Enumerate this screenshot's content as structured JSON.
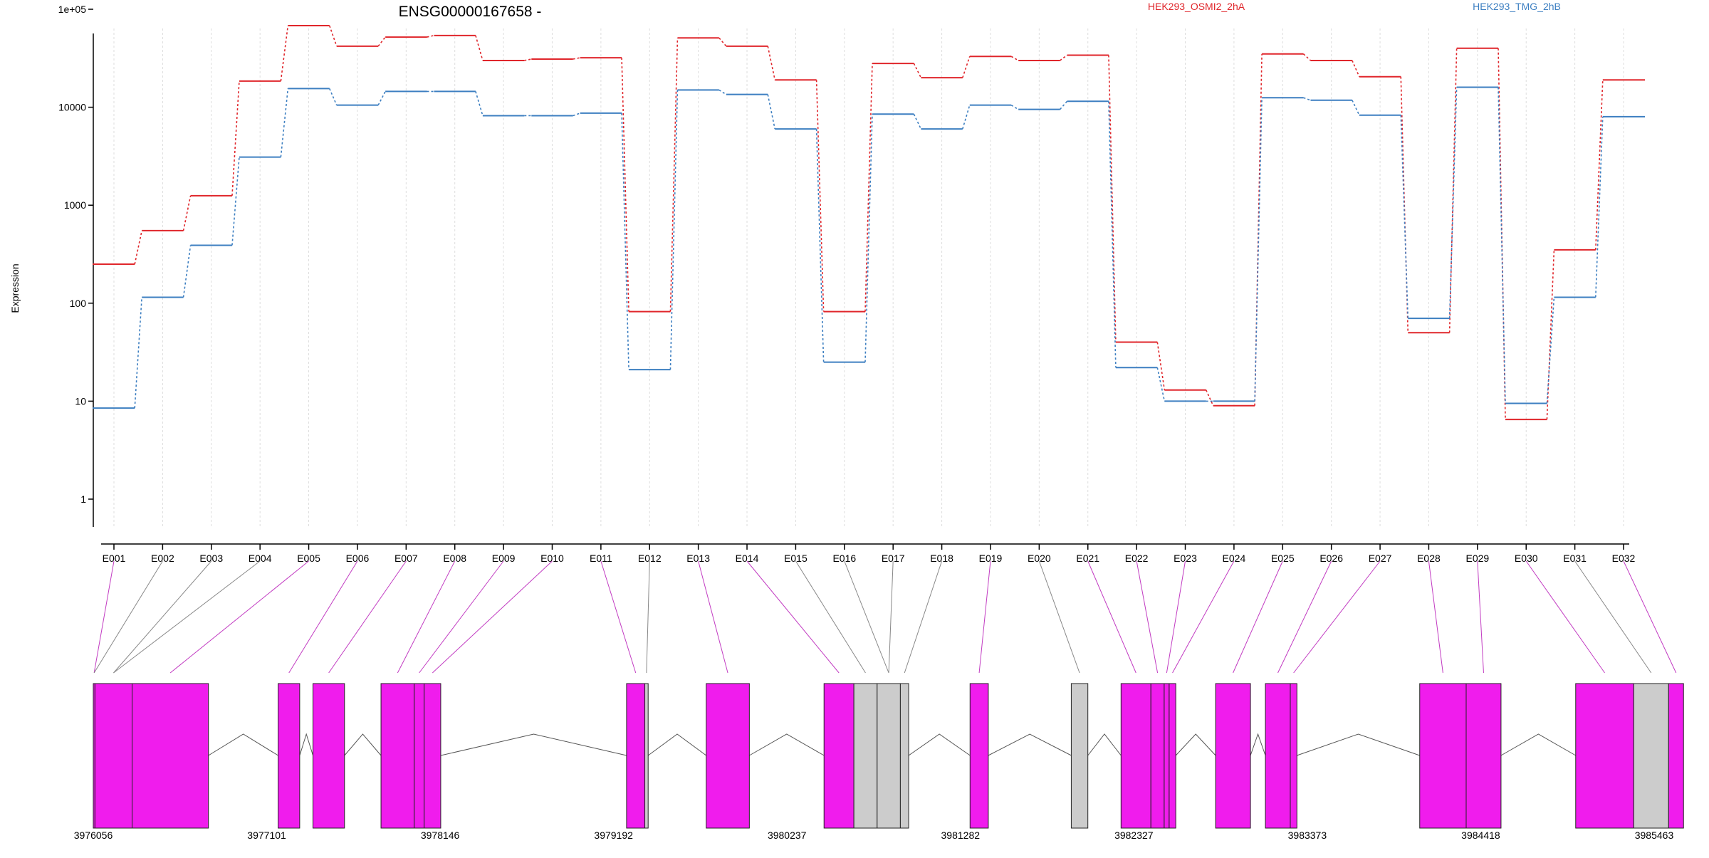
{
  "chart_data": {
    "type": "line",
    "title": "ENSG00000167658 -",
    "ylabel": "Expression",
    "xlabel": "",
    "y_scale": "log",
    "y_ticks": [
      {
        "value": 1,
        "label": "1"
      },
      {
        "value": 10,
        "label": "10"
      },
      {
        "value": 100,
        "label": "100"
      },
      {
        "value": 1000,
        "label": "1000"
      },
      {
        "value": 10000,
        "label": "10000"
      },
      {
        "value": 100000,
        "label": "1e+05"
      }
    ],
    "grid": "vertical dotted lines at exon boundaries",
    "legend_placement": "top",
    "categories": [
      "E001",
      "E002",
      "E003",
      "E004",
      "E005",
      "E006",
      "E007",
      "E008",
      "E009",
      "E010",
      "E011",
      "E012",
      "E013",
      "E014",
      "E015",
      "E016",
      "E017",
      "E018",
      "E019",
      "E020",
      "E021",
      "E022",
      "E023",
      "E024",
      "E025",
      "E026",
      "E027",
      "E028",
      "E029",
      "E030",
      "E031",
      "E032"
    ],
    "series": [
      {
        "name": "HEK293_OSMI2_2hA",
        "color": "#e0262b",
        "values": [
          250,
          550,
          1250,
          18500,
          68000,
          42000,
          52000,
          54000,
          30000,
          31000,
          32000,
          82,
          51000,
          42000,
          19000,
          82,
          28000,
          20000,
          33000,
          30000,
          34000,
          40,
          13,
          9,
          35000,
          30000,
          20500,
          50,
          40000,
          6.5,
          350,
          19000
        ]
      },
      {
        "name": "HEK293_TMG_2hB",
        "color": "#3d7fc1",
        "values": [
          8.5,
          115,
          390,
          3100,
          15500,
          10500,
          14500,
          14500,
          8200,
          8200,
          8700,
          21,
          15000,
          13500,
          6000,
          25,
          8500,
          6000,
          10500,
          9500,
          11500,
          22,
          10,
          10,
          12500,
          11800,
          8300,
          70,
          16000,
          9.5,
          115,
          8000
        ]
      }
    ],
    "gene_model": {
      "coordinate_ticks": [
        "3976056",
        "3977101",
        "3978146",
        "3979192",
        "3980237",
        "3981282",
        "3982327",
        "3983373",
        "3984418",
        "3985463"
      ],
      "start": 3976056,
      "end": 3985463,
      "exon_color": "#f01ced",
      "other_color": "#cccccc",
      "bins": [
        {
          "start": 3976056,
          "end": 3976066,
          "color": "#f01ced"
        },
        {
          "start": 3976066,
          "end": 3976290,
          "color": "#f01ced"
        },
        {
          "start": 3976290,
          "end": 3976750,
          "color": "#f01ced"
        },
        {
          "start": 3977170,
          "end": 3977300,
          "color": "#f01ced"
        },
        {
          "start": 3977380,
          "end": 3977570,
          "color": "#f01ced"
        },
        {
          "start": 3977790,
          "end": 3977990,
          "color": "#f01ced"
        },
        {
          "start": 3977990,
          "end": 3978050,
          "color": "#f01ced"
        },
        {
          "start": 3978050,
          "end": 3978150,
          "color": "#f01ced"
        },
        {
          "start": 3979270,
          "end": 3979380,
          "color": "#f01ced"
        },
        {
          "start": 3979380,
          "end": 3979400,
          "color": "#cccccc"
        },
        {
          "start": 3979750,
          "end": 3980010,
          "color": "#f01ced"
        },
        {
          "start": 3980460,
          "end": 3980640,
          "color": "#f01ced"
        },
        {
          "start": 3980640,
          "end": 3980780,
          "color": "#cccccc"
        },
        {
          "start": 3980780,
          "end": 3980920,
          "color": "#cccccc"
        },
        {
          "start": 3980920,
          "end": 3980970,
          "color": "#cccccc"
        },
        {
          "start": 3981340,
          "end": 3981450,
          "color": "#f01ced"
        },
        {
          "start": 3981950,
          "end": 3982050,
          "color": "#cccccc"
        },
        {
          "start": 3982250,
          "end": 3982430,
          "color": "#f01ced"
        },
        {
          "start": 3982430,
          "end": 3982510,
          "color": "#f01ced"
        },
        {
          "start": 3982510,
          "end": 3982540,
          "color": "#f01ced"
        },
        {
          "start": 3982540,
          "end": 3982580,
          "color": "#f01ced"
        },
        {
          "start": 3982820,
          "end": 3983030,
          "color": "#f01ced"
        },
        {
          "start": 3983120,
          "end": 3983270,
          "color": "#f01ced"
        },
        {
          "start": 3983270,
          "end": 3983310,
          "color": "#f01ced"
        },
        {
          "start": 3984050,
          "end": 3984330,
          "color": "#f01ced"
        },
        {
          "start": 3984330,
          "end": 3984540,
          "color": "#f01ced"
        },
        {
          "start": 3984990,
          "end": 3985340,
          "color": "#f01ced"
        },
        {
          "start": 3985340,
          "end": 3985550,
          "color": "#cccccc"
        },
        {
          "start": 3985550,
          "end": 3985640,
          "color": "#f01ced"
        }
      ],
      "connectors": [
        {
          "exon": 0,
          "bin": 0,
          "color": "#c23cc2"
        },
        {
          "exon": 1,
          "bin": 0,
          "color": "#888888"
        },
        {
          "exon": 2,
          "bin": 1,
          "color": "#888888"
        },
        {
          "exon": 3,
          "bin": 1,
          "color": "#888888"
        },
        {
          "exon": 4,
          "bin": 2,
          "color": "#c23cc2"
        },
        {
          "exon": 5,
          "bin": 3,
          "color": "#c23cc2"
        },
        {
          "exon": 6,
          "bin": 4,
          "color": "#c23cc2"
        },
        {
          "exon": 7,
          "bin": 5,
          "color": "#c23cc2"
        },
        {
          "exon": 8,
          "bin": 6,
          "color": "#c23cc2"
        },
        {
          "exon": 9,
          "bin": 7,
          "color": "#c23cc2"
        },
        {
          "exon": 10,
          "bin": 8,
          "color": "#c23cc2"
        },
        {
          "exon": 11,
          "bin": 9,
          "color": "#888888"
        },
        {
          "exon": 12,
          "bin": 10,
          "color": "#c23cc2"
        },
        {
          "exon": 13,
          "bin": 11,
          "color": "#c23cc2"
        },
        {
          "exon": 14,
          "bin": 12,
          "color": "#888888"
        },
        {
          "exon": 15,
          "bin": 13,
          "color": "#888888"
        },
        {
          "exon": 16,
          "bin": 13,
          "color": "#888888"
        },
        {
          "exon": 17,
          "bin": 14,
          "color": "#888888"
        },
        {
          "exon": 18,
          "bin": 15,
          "color": "#c23cc2"
        },
        {
          "exon": 19,
          "bin": 16,
          "color": "#888888"
        },
        {
          "exon": 20,
          "bin": 17,
          "color": "#c23cc2"
        },
        {
          "exon": 21,
          "bin": 18,
          "color": "#c23cc2"
        },
        {
          "exon": 22,
          "bin": 19,
          "color": "#c23cc2"
        },
        {
          "exon": 23,
          "bin": 20,
          "color": "#c23cc2"
        },
        {
          "exon": 24,
          "bin": 21,
          "color": "#c23cc2"
        },
        {
          "exon": 25,
          "bin": 22,
          "color": "#c23cc2"
        },
        {
          "exon": 26,
          "bin": 23,
          "color": "#c23cc2"
        },
        {
          "exon": 27,
          "bin": 24,
          "color": "#c23cc2"
        },
        {
          "exon": 28,
          "bin": 25,
          "color": "#c23cc2"
        },
        {
          "exon": 29,
          "bin": 26,
          "color": "#c23cc2"
        },
        {
          "exon": 30,
          "bin": 27,
          "color": "#888888"
        },
        {
          "exon": 31,
          "bin": 28,
          "color": "#c23cc2"
        }
      ]
    }
  }
}
